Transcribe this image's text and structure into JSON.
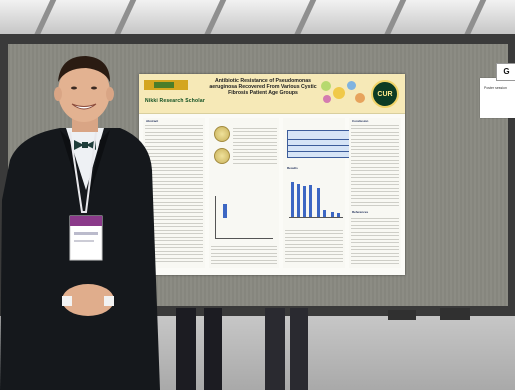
{
  "poster": {
    "school_label": "Nikki Research Scholar",
    "title": "Antibiotic Resistance of Pseudomonas aeruginosa Recovered From Various Cystic Fibrosis Patient Age Groups",
    "seal_text": "CUR",
    "sections": {
      "abstract": "Abstract",
      "results": "Results",
      "conclusion": "Conclusion",
      "references": "References"
    }
  },
  "side_card": {
    "tab": "G",
    "text": "Poster session"
  }
}
